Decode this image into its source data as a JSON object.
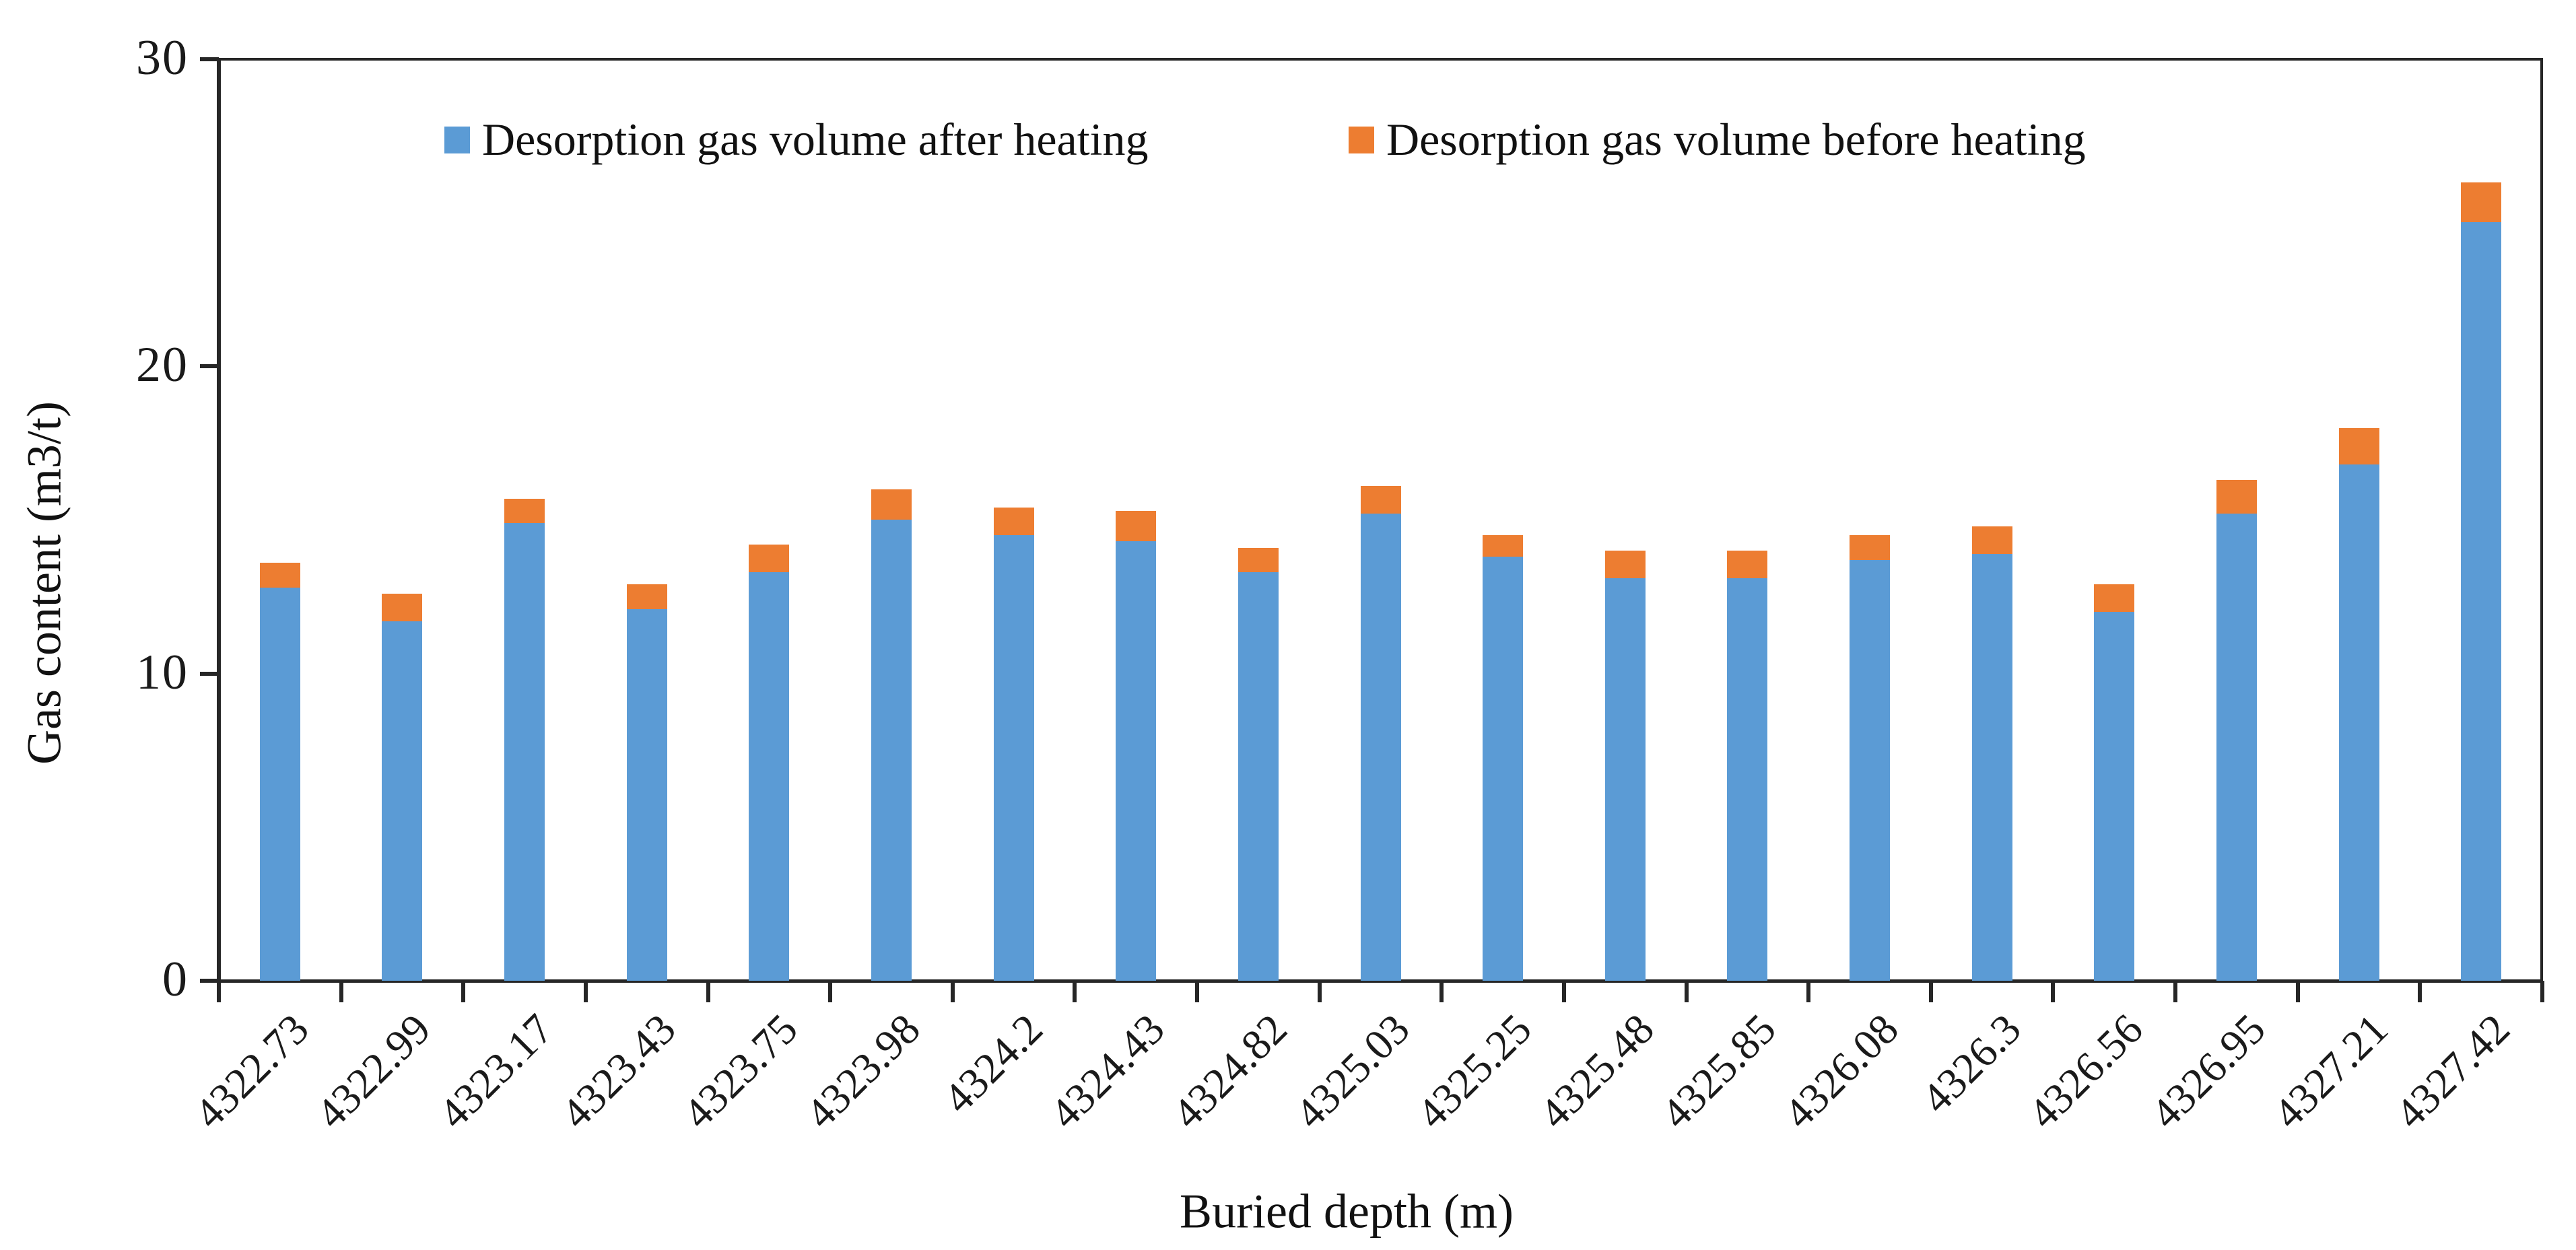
{
  "chart_data": {
    "type": "bar",
    "stacked": true,
    "title": "",
    "xlabel": "Buried depth (m)",
    "ylabel": "Gas content (m3/t)",
    "ylim": [
      0,
      30
    ],
    "yticks": [
      0,
      10,
      20,
      30
    ],
    "grid": false,
    "legend_position": "top",
    "categories": [
      "4322.73",
      "4322.99",
      "4323.17",
      "4323.43",
      "4323.75",
      "4323.98",
      "4324.2",
      "4324.43",
      "4324.82",
      "4325.03",
      "4325.25",
      "4325.48",
      "4325.85",
      "4326.08",
      "4326.3",
      "4326.56",
      "4326.95",
      "4327.21",
      "4327.42"
    ],
    "series": [
      {
        "name": "Desorption gas volume after heating",
        "color": "#5B9BD5",
        "values": [
          12.8,
          11.7,
          14.9,
          12.1,
          13.3,
          15.0,
          14.5,
          14.3,
          13.3,
          15.2,
          13.8,
          13.1,
          13.1,
          13.7,
          13.9,
          12.0,
          15.2,
          16.8,
          24.7
        ]
      },
      {
        "name": "Desorption gas volume before heating",
        "color": "#ED7D31",
        "values": [
          0.8,
          0.9,
          0.8,
          0.8,
          0.9,
          1.0,
          0.9,
          1.0,
          0.8,
          0.9,
          0.7,
          0.9,
          0.9,
          0.8,
          0.9,
          0.9,
          1.1,
          1.2,
          1.3
        ]
      }
    ],
    "axis_color": "#262626"
  }
}
